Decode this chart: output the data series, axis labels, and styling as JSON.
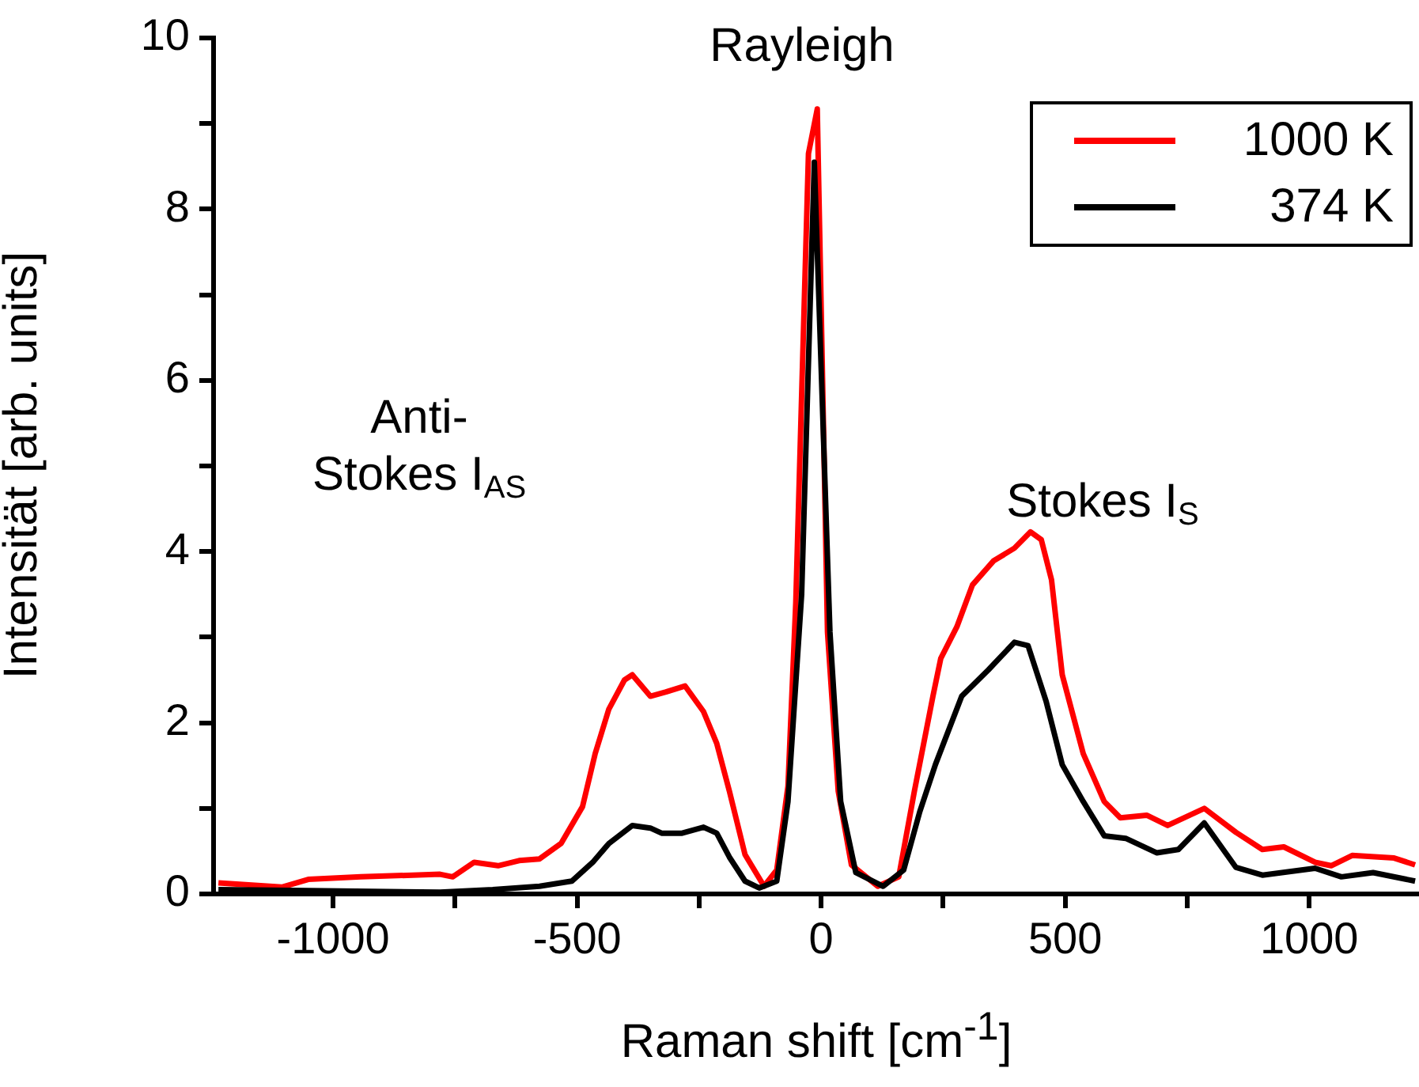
{
  "chart_data": {
    "type": "line",
    "xlabel": "Raman shift [cm$^{-1}$]",
    "ylabel": "Intensität [arb. units]",
    "xlim": [
      -1245,
      1225
    ],
    "ylim": [
      0,
      10
    ],
    "xticks": [
      -1000,
      {
        "value": -750,
        "label": null
      },
      -500,
      {
        "value": -250,
        "label": null
      },
      0,
      {
        "value": 250,
        "label": null
      },
      500,
      {
        "value": 750,
        "label": null
      },
      1000
    ],
    "yticks": [
      0,
      {
        "value": 1,
        "label": null
      },
      2,
      {
        "value": 3,
        "label": null
      },
      4,
      {
        "value": 5,
        "label": null
      },
      6,
      {
        "value": 7,
        "label": null
      },
      8,
      {
        "value": 9,
        "label": null
      },
      10
    ],
    "grid": false,
    "legend": "top right",
    "marker": "none",
    "line_style": "solid",
    "annotations": [
      "Rayleigh",
      "Anti-\nStokes I$_{AS}$",
      "Stokes I$_{S}$"
    ],
    "series": [
      {
        "name": "1000 K",
        "color": "#ff0000",
        "x": [
          -1235,
          -1105,
          -1051,
          -943,
          -781,
          -755,
          -711,
          -662,
          -619,
          -577,
          -533,
          -489,
          -463,
          -435,
          -403,
          -387,
          -350,
          -318,
          -279,
          -241,
          -214,
          -188,
          -156,
          -117,
          -91,
          -68,
          -52,
          -26,
          -8,
          13,
          35,
          62,
          116,
          159,
          191,
          229,
          245,
          278,
          310,
          353,
          396,
          429,
          451,
          472,
          494,
          537,
          580,
          613,
          667,
          710,
          785,
          850,
          904,
          948,
          1012,
          1045,
          1088,
          1174,
          1217
        ],
        "values": [
          0.13,
          0.08,
          0.17,
          0.2,
          0.23,
          0.2,
          0.37,
          0.33,
          0.39,
          0.41,
          0.59,
          1.02,
          1.64,
          2.16,
          2.5,
          2.56,
          2.31,
          2.36,
          2.43,
          2.13,
          1.76,
          1.2,
          0.46,
          0.09,
          0.28,
          1.26,
          3.4,
          8.65,
          9.17,
          3.06,
          1.2,
          0.34,
          0.09,
          0.2,
          1.2,
          2.31,
          2.75,
          3.12,
          3.61,
          3.89,
          4.04,
          4.23,
          4.14,
          3.67,
          2.56,
          1.64,
          1.08,
          0.89,
          0.92,
          0.8,
          1.0,
          0.72,
          0.52,
          0.55,
          0.37,
          0.33,
          0.45,
          0.42,
          0.34
        ]
      },
      {
        "name": "374 K",
        "color": "#000000",
        "x": [
          -1235,
          -1051,
          -781,
          -673,
          -577,
          -511,
          -468,
          -435,
          -387,
          -350,
          -327,
          -285,
          -241,
          -214,
          -188,
          -156,
          -127,
          -91,
          -68,
          -40,
          -14,
          18,
          40,
          71,
          127,
          169,
          202,
          234,
          288,
          343,
          396,
          424,
          461,
          494,
          537,
          580,
          624,
          688,
          732,
          785,
          850,
          904,
          1012,
          1066,
          1131,
          1217
        ],
        "values": [
          0.05,
          0.04,
          0.02,
          0.05,
          0.09,
          0.15,
          0.37,
          0.59,
          0.8,
          0.77,
          0.71,
          0.71,
          0.78,
          0.71,
          0.43,
          0.15,
          0.07,
          0.15,
          1.08,
          3.5,
          8.55,
          3.06,
          1.08,
          0.25,
          0.09,
          0.28,
          0.96,
          1.51,
          2.31,
          2.62,
          2.94,
          2.9,
          2.25,
          1.51,
          1.08,
          0.68,
          0.65,
          0.48,
          0.52,
          0.83,
          0.31,
          0.22,
          0.3,
          0.2,
          0.25,
          0.15
        ]
      }
    ]
  }
}
